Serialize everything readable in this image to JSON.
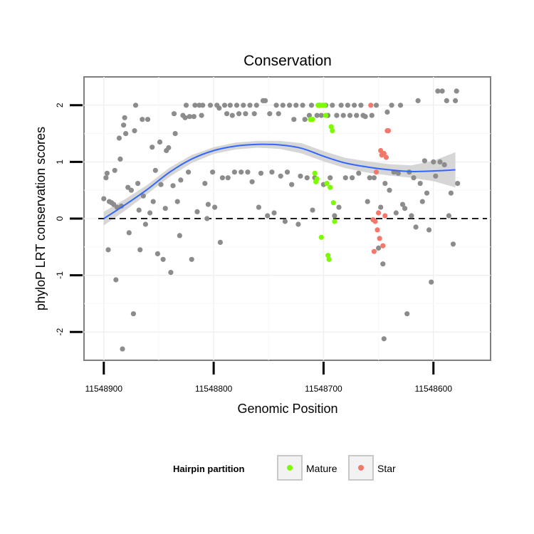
{
  "chart_data": {
    "type": "scatter",
    "title": "Conservation",
    "xlabel": "Genomic Position",
    "ylabel": "phyloP LRT conservation scores",
    "xlim": [
      11548918,
      11548548
    ],
    "ylim": [
      -2.5,
      2.5
    ],
    "x_reversed": true,
    "xticks": [
      11548900,
      11548800,
      11548700,
      11548600
    ],
    "xtick_labels": [
      "11548900",
      "11548800",
      "11548700",
      "11548600"
    ],
    "yticks": [
      -2,
      -1,
      0,
      1,
      2
    ],
    "ytick_labels": [
      "-2",
      "-1",
      "0",
      "1",
      "2"
    ],
    "grid": true,
    "reference_line": {
      "y": 0,
      "style": "dashed"
    },
    "colors": {
      "Other": "#8c8c8c",
      "Mature": "#7cfc00",
      "Star": "#f4776b",
      "smooth": "#3366ff",
      "ribbon": "#cfcfcf"
    },
    "legend": {
      "title": "Hairpin partition",
      "position": "bottom",
      "entries": [
        {
          "label": "Mature",
          "color": "#7cfc00"
        },
        {
          "label": "Star",
          "color": "#f4776b"
        }
      ]
    },
    "smooth": {
      "x": [
        11548900,
        11548880,
        11548860,
        11548840,
        11548820,
        11548800,
        11548780,
        11548760,
        11548740,
        11548720,
        11548700,
        11548680,
        11548660,
        11548640,
        11548620,
        11548600,
        11548580
      ],
      "y": [
        0.0,
        0.25,
        0.52,
        0.82,
        1.05,
        1.2,
        1.28,
        1.31,
        1.3,
        1.24,
        1.1,
        0.98,
        0.91,
        0.86,
        0.83,
        0.84,
        0.86
      ],
      "lower": [
        -0.12,
        0.15,
        0.44,
        0.74,
        0.98,
        1.14,
        1.22,
        1.25,
        1.23,
        1.15,
        1.01,
        0.89,
        0.81,
        0.76,
        0.72,
        0.66,
        0.55
      ],
      "upper": [
        0.12,
        0.35,
        0.6,
        0.9,
        1.12,
        1.26,
        1.34,
        1.37,
        1.37,
        1.33,
        1.19,
        1.07,
        1.01,
        0.96,
        0.94,
        1.02,
        1.17
      ]
    },
    "series": [
      {
        "name": "Other",
        "points": [
          [
            11548900,
            0.35
          ],
          [
            11548898,
            0.72
          ],
          [
            11548897,
            0.8
          ],
          [
            11548896,
            -0.55
          ],
          [
            11548895,
            0.3
          ],
          [
            11548893,
            0.28
          ],
          [
            11548891,
            0.25
          ],
          [
            11548890,
            0.85
          ],
          [
            11548889,
            -1.08
          ],
          [
            11548888,
            0.2
          ],
          [
            11548886,
            1.42
          ],
          [
            11548885,
            1.05
          ],
          [
            11548884,
            0.22
          ],
          [
            11548883,
            -2.3
          ],
          [
            11548882,
            1.65
          ],
          [
            11548881,
            1.78
          ],
          [
            11548880,
            1.5
          ],
          [
            11548878,
            0.55
          ],
          [
            11548877,
            -0.25
          ],
          [
            11548875,
            0.5
          ],
          [
            11548873,
            -1.68
          ],
          [
            11548872,
            1.55
          ],
          [
            11548871,
            2.0
          ],
          [
            11548869,
            0.62
          ],
          [
            11548868,
            0.15
          ],
          [
            11548867,
            -0.55
          ],
          [
            11548865,
            1.75
          ],
          [
            11548864,
            0.4
          ],
          [
            11548862,
            -0.1
          ],
          [
            11548860,
            1.75
          ],
          [
            11548858,
            0.1
          ],
          [
            11548856,
            1.26
          ],
          [
            11548855,
            0.3
          ],
          [
            11548853,
            0.85
          ],
          [
            11548851,
            -0.62
          ],
          [
            11548849,
            1.35
          ],
          [
            11548848,
            0.6
          ],
          [
            11548846,
            -0.72
          ],
          [
            11548844,
            0.18
          ],
          [
            11548843,
            1.2
          ],
          [
            11548841,
            1.25
          ],
          [
            11548839,
            -0.95
          ],
          [
            11548837,
            0.58
          ],
          [
            11548836,
            1.85
          ],
          [
            11548835,
            1.5
          ],
          [
            11548833,
            0.3
          ],
          [
            11548831,
            -0.3
          ],
          [
            11548830,
            0.68
          ],
          [
            11548828,
            1.82
          ],
          [
            11548826,
            1.78
          ],
          [
            11548825,
            2.0
          ],
          [
            11548823,
            0.82
          ],
          [
            11548822,
            1.8
          ],
          [
            11548820,
            -0.72
          ],
          [
            11548818,
            1.8
          ],
          [
            11548817,
            2.0
          ],
          [
            11548815,
            0.12
          ],
          [
            11548813,
            2.0
          ],
          [
            11548811,
            1.82
          ],
          [
            11548810,
            2.0
          ],
          [
            11548808,
            0.62
          ],
          [
            11548806,
            0.0
          ],
          [
            11548805,
            0.25
          ],
          [
            11548803,
            2.0
          ],
          [
            11548801,
            0.82
          ],
          [
            11548799,
            0.2
          ],
          [
            11548797,
            2.0
          ],
          [
            11548795,
            1.95
          ],
          [
            11548794,
            -0.42
          ],
          [
            11548792,
            0.72
          ],
          [
            11548790,
            2.0
          ],
          [
            11548788,
            1.85
          ],
          [
            11548787,
            0.72
          ],
          [
            11548785,
            2.0
          ],
          [
            11548783,
            1.82
          ],
          [
            11548781,
            0.82
          ],
          [
            11548779,
            2.0
          ],
          [
            11548777,
            1.85
          ],
          [
            11548775,
            0.82
          ],
          [
            11548773,
            2.0
          ],
          [
            11548771,
            1.85
          ],
          [
            11548769,
            0.82
          ],
          [
            11548767,
            2.0
          ],
          [
            11548765,
            0.65
          ],
          [
            11548763,
            1.85
          ],
          [
            11548761,
            2.0
          ],
          [
            11548759,
            0.2
          ],
          [
            11548757,
            0.8
          ],
          [
            11548755,
            2.08
          ],
          [
            11548753,
            2.08
          ],
          [
            11548751,
            0.05
          ],
          [
            11548749,
            1.85
          ],
          [
            11548747,
            0.82
          ],
          [
            11548745,
            0.1
          ],
          [
            11548743,
            2.0
          ],
          [
            11548741,
            1.85
          ],
          [
            11548739,
            0.75
          ],
          [
            11548737,
            2.0
          ],
          [
            11548735,
            -0.05
          ],
          [
            11548733,
            0.82
          ],
          [
            11548731,
            2.0
          ],
          [
            11548729,
            0.6
          ],
          [
            11548727,
            1.75
          ],
          [
            11548725,
            2.0
          ],
          [
            11548723,
            -0.1
          ],
          [
            11548721,
            0.75
          ],
          [
            11548719,
            2.0
          ],
          [
            11548717,
            1.75
          ],
          [
            11548715,
            0.72
          ],
          [
            11548713,
            1.82
          ],
          [
            11548711,
            2.0
          ],
          [
            11548710,
            0.15
          ],
          [
            11548708,
            0.72
          ],
          [
            11548706,
            1.82
          ],
          [
            11548704,
            2.0
          ],
          [
            11548702,
            1.82
          ],
          [
            11548700,
            0.6
          ],
          [
            11548698,
            2.0
          ],
          [
            11548696,
            1.82
          ],
          [
            11548694,
            0.72
          ],
          [
            11548692,
            2.0
          ],
          [
            11548690,
            0.05
          ],
          [
            11548688,
            1.82
          ],
          [
            11548686,
            0.2
          ],
          [
            11548684,
            2.0
          ],
          [
            11548682,
            1.82
          ],
          [
            11548680,
            0.72
          ],
          [
            11548678,
            2.0
          ],
          [
            11548676,
            1.82
          ],
          [
            11548674,
            0.72
          ],
          [
            11548672,
            2.0
          ],
          [
            11548670,
            1.82
          ],
          [
            11548668,
            0.8
          ],
          [
            11548666,
            2.0
          ],
          [
            11548664,
            1.82
          ],
          [
            11548662,
            1.8
          ],
          [
            11548660,
            0.3
          ],
          [
            11548658,
            0.72
          ],
          [
            11548656,
            1.82
          ],
          [
            11548654,
            0.72
          ],
          [
            11548652,
            2.0
          ],
          [
            11548650,
            -0.52
          ],
          [
            11548648,
            0.2
          ],
          [
            11548646,
            -0.8
          ],
          [
            11548645,
            -2.12
          ],
          [
            11548644,
            0.62
          ],
          [
            11548642,
            1.88
          ],
          [
            11548640,
            0.5
          ],
          [
            11548638,
            2.0
          ],
          [
            11548636,
            0.82
          ],
          [
            11548634,
            0.1
          ],
          [
            11548632,
            0.8
          ],
          [
            11548630,
            2.0
          ],
          [
            11548628,
            0.25
          ],
          [
            11548626,
            0.18
          ],
          [
            11548624,
            -1.68
          ],
          [
            11548622,
            0.82
          ],
          [
            11548620,
            0.05
          ],
          [
            11548618,
            0.72
          ],
          [
            11548616,
            -0.15
          ],
          [
            11548614,
            2.08
          ],
          [
            11548612,
            0.62
          ],
          [
            11548610,
            0.3
          ],
          [
            11548608,
            1.02
          ],
          [
            11548606,
            0.45
          ],
          [
            11548604,
            -0.2
          ],
          [
            11548602,
            -1.12
          ],
          [
            11548600,
            1.0
          ],
          [
            11548598,
            0.75
          ],
          [
            11548596,
            2.25
          ],
          [
            11548594,
            1.0
          ],
          [
            11548592,
            2.25
          ],
          [
            11548590,
            0.95
          ],
          [
            11548588,
            2.08
          ],
          [
            11548586,
            0.05
          ],
          [
            11548584,
            0.45
          ],
          [
            11548582,
            -0.45
          ],
          [
            11548580,
            2.08
          ],
          [
            11548579,
            2.25
          ],
          [
            11548578,
            0.62
          ]
        ]
      },
      {
        "name": "Mature",
        "points": [
          [
            11548712,
            1.75
          ],
          [
            11548710,
            1.75
          ],
          [
            11548708,
            0.8
          ],
          [
            11548707,
            0.65
          ],
          [
            11548706,
            0.7
          ],
          [
            11548705,
            2.0
          ],
          [
            11548703,
            2.0
          ],
          [
            11548702,
            -0.33
          ],
          [
            11548701,
            2.0
          ],
          [
            11548699,
            2.0
          ],
          [
            11548698,
            1.82
          ],
          [
            11548697,
            0.62
          ],
          [
            11548696,
            -0.65
          ],
          [
            11548695,
            -0.72
          ],
          [
            11548694,
            0.55
          ],
          [
            11548693,
            1.62
          ],
          [
            11548692,
            1.55
          ],
          [
            11548691,
            0.28
          ],
          [
            11548690,
            -0.05
          ]
        ]
      },
      {
        "name": "Star",
        "points": [
          [
            11548657,
            2.0
          ],
          [
            11548655,
            -0.02
          ],
          [
            11548654,
            -0.58
          ],
          [
            11548653,
            -0.05
          ],
          [
            11548652,
            0.82
          ],
          [
            11548651,
            -0.2
          ],
          [
            11548650,
            0.1
          ],
          [
            11548649,
            -0.35
          ],
          [
            11548648,
            1.2
          ],
          [
            11548647,
            1.12
          ],
          [
            11548646,
            -0.48
          ],
          [
            11548645,
            1.15
          ],
          [
            11548644,
            0.05
          ],
          [
            11548643,
            1.08
          ],
          [
            11548642,
            1.55
          ],
          [
            11548641,
            1.55
          ]
        ]
      }
    ]
  }
}
